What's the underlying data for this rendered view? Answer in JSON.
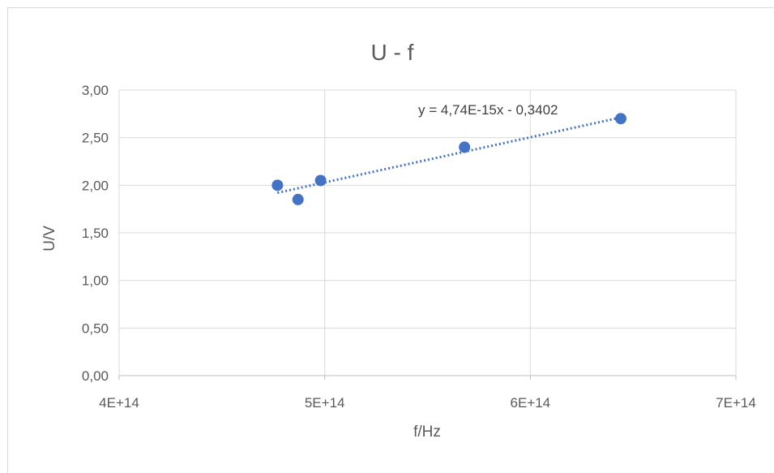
{
  "chart_data": {
    "type": "scatter",
    "title": "U - f",
    "xlabel": "f/Hz",
    "ylabel": "U/V",
    "xlim": [
      400000000000000.0,
      700000000000000.0
    ],
    "ylim": [
      0,
      3
    ],
    "x_ticks": [
      400000000000000.0,
      500000000000000.0,
      600000000000000.0,
      700000000000000.0
    ],
    "x_tick_labels": [
      "4E+14",
      "5E+14",
      "6E+14",
      "7E+14"
    ],
    "y_ticks": [
      0,
      0.5,
      1,
      1.5,
      2,
      2.5,
      3
    ],
    "y_tick_labels": [
      "0,00",
      "0,50",
      "1,00",
      "1,50",
      "2,00",
      "2,50",
      "3,00"
    ],
    "grid": true,
    "series": [
      {
        "color": "#4472c4",
        "points": [
          {
            "x": 477000000000000.0,
            "y": 2.0
          },
          {
            "x": 487000000000000.0,
            "y": 1.85
          },
          {
            "x": 498000000000000.0,
            "y": 2.05
          },
          {
            "x": 568000000000000.0,
            "y": 2.4
          },
          {
            "x": 644000000000000.0,
            "y": 2.7
          }
        ]
      }
    ],
    "trendline": {
      "type": "linear",
      "style": "dotted",
      "color": "#4472c4",
      "slope": 4.74e-15,
      "intercept": -0.3402,
      "x_range": [
        477000000000000.0,
        644000000000000.0
      ],
      "equation_label": "y = 4,74E-15x - 0,3402"
    }
  }
}
